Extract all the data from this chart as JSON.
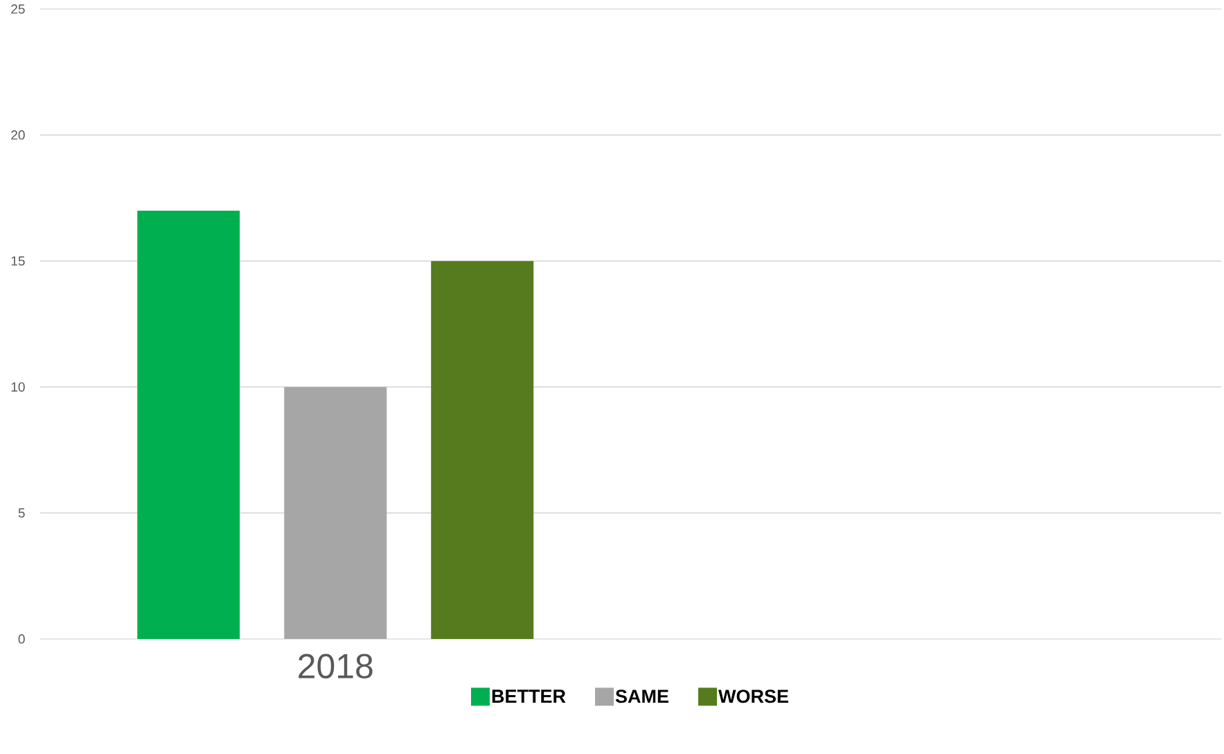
{
  "chart_data": {
    "type": "bar",
    "categories": [
      "2018",
      null
    ],
    "series": [
      {
        "name": "BETTER",
        "color": "#00b050",
        "values": [
          17,
          null
        ]
      },
      {
        "name": "SAME",
        "color": "#a6a6a6",
        "values": [
          10,
          null
        ]
      },
      {
        "name": "WORSE",
        "color": "#567b1e",
        "values": [
          15,
          null
        ]
      }
    ],
    "ylim": [
      0,
      25
    ],
    "yticks": [
      0,
      5,
      10,
      15,
      20,
      25
    ],
    "grid": "y",
    "legend": "bottom"
  }
}
